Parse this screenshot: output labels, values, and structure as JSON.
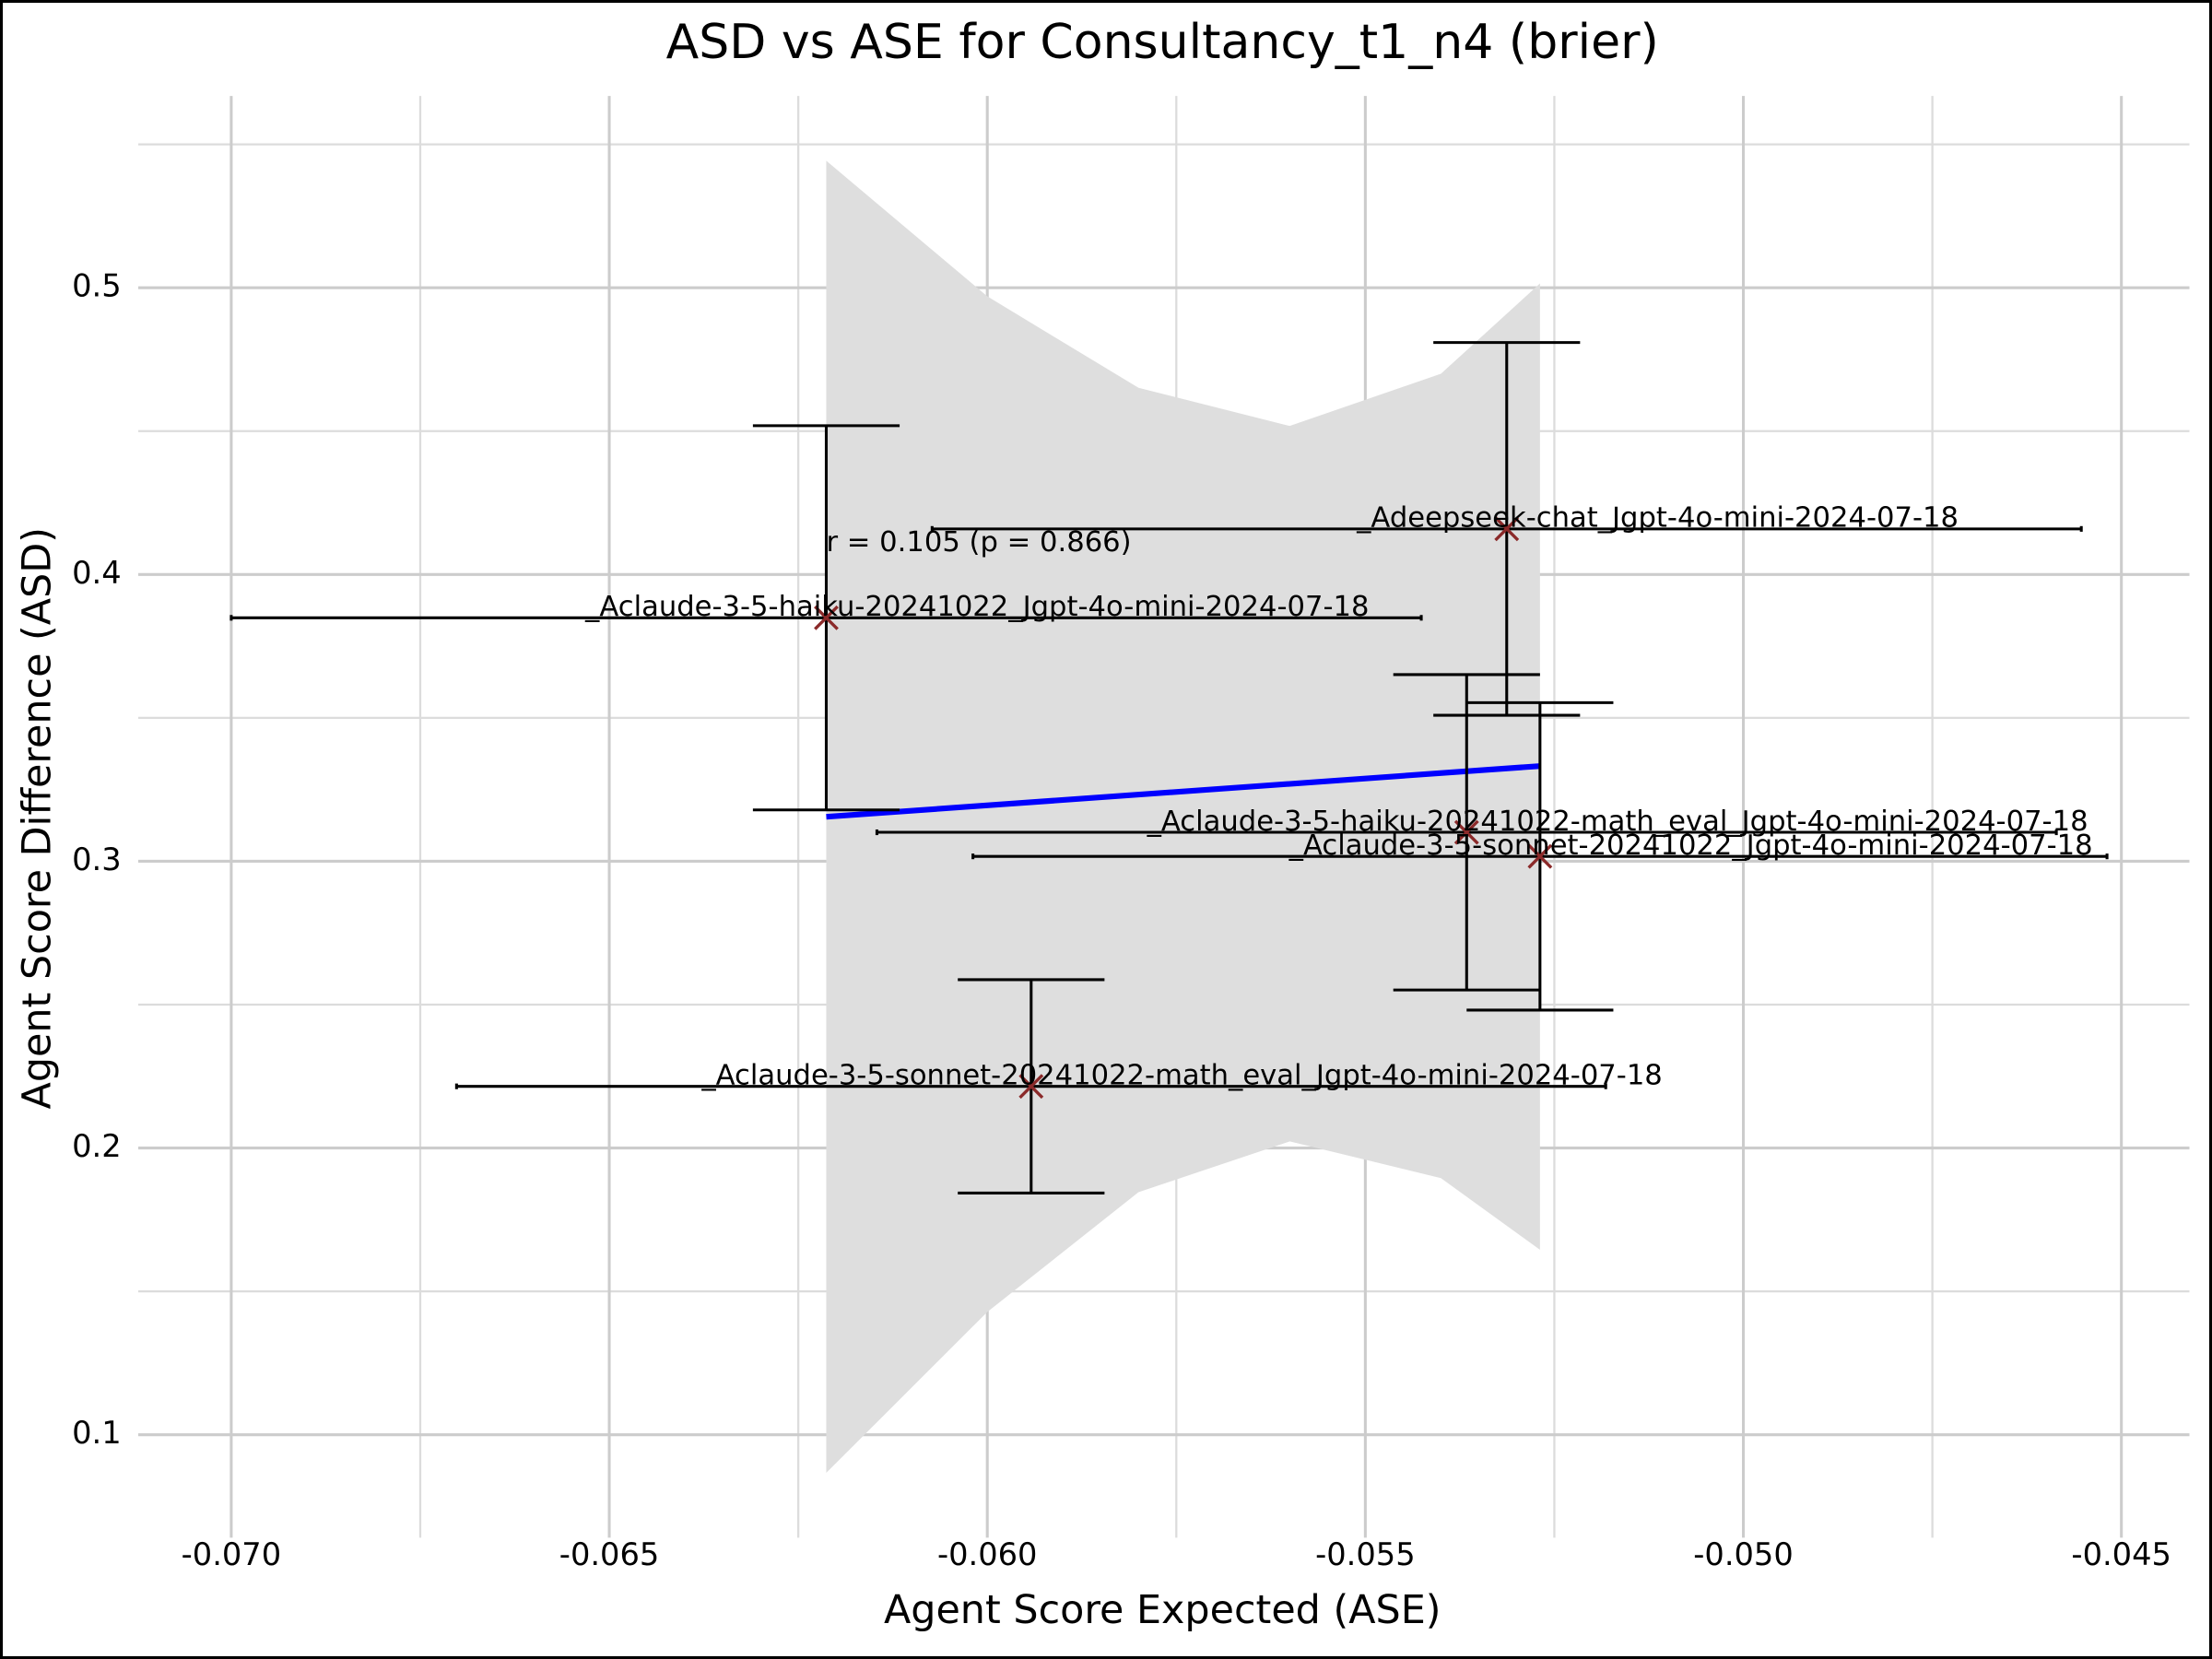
{
  "chart_data": {
    "type": "scatter",
    "title": "ASD vs ASE for Consultancy_t1_n4 (brier)",
    "xlabel": "Agent Score Expected (ASE)",
    "ylabel": "Agent Score Difference (ASD)",
    "annotation": "r = 0.105 (p = 0.866)",
    "points": {
      "labels": [
        "_Aclaude-3-5-haiku-20241022_Jgpt-4o-mini-2024-07-18",
        "_Adeepseek-chat_Jgpt-4o-mini-2024-07-18",
        "_Aclaude-3-5-haiku-20241022-math_eval_Jgpt-4o-mini-2024-07-18",
        "_Aclaude-3-5-sonnet-20241022_Jgpt-4o-mini-2024-07-18",
        "_Aclaude-3-5-sonnet-20241022-math_eval_Jgpt-4o-mini-2024-07-18"
      ],
      "x": [
        -0.06213,
        -0.05313,
        -0.05366,
        -0.05269,
        -0.05942
      ],
      "y": [
        0.3849,
        0.4159,
        0.3101,
        0.3017,
        0.2215
      ],
      "xerr": [
        0.00787,
        0.0076,
        0.0078,
        0.0075,
        0.0076
      ],
      "yerr": [
        0.067,
        0.065,
        0.055,
        0.0536,
        0.0372
      ],
      "color": "#8b2a2a",
      "errorbar_color": "#000000"
    },
    "fit": {
      "x": [
        -0.06213,
        -0.05269
      ],
      "y": [
        0.3155,
        0.3332
      ],
      "color": "#0000ff"
    },
    "band": {
      "x": [
        -0.06213,
        -0.06,
        -0.058,
        -0.056,
        -0.054,
        -0.05269
      ],
      "upper": [
        0.5443,
        0.497,
        0.4651,
        0.4518,
        0.47,
        0.5015
      ],
      "lower": [
        0.0867,
        0.1428,
        0.1846,
        0.2023,
        0.1895,
        0.1645
      ],
      "color": "#dedede"
    },
    "xlim": [
      -0.07123,
      -0.0441
    ],
    "ylim": [
      0.0641,
      0.5669
    ],
    "xticks": [
      {
        "value": -0.07,
        "label": "-0.070"
      },
      -0.065,
      {
        "value": -0.06,
        "label": "-0.060"
      },
      -0.055,
      {
        "value": -0.05,
        "label": "-0.050"
      },
      -0.045
    ],
    "yticks": [
      0.1,
      0.2,
      0.3,
      0.4,
      0.5
    ],
    "x_minor_grid": [
      -0.0675,
      -0.0625,
      -0.0575,
      -0.0525,
      -0.0475
    ],
    "y_minor_grid": [
      0.15,
      0.25,
      0.35,
      0.45,
      0.55
    ],
    "grid": true
  }
}
